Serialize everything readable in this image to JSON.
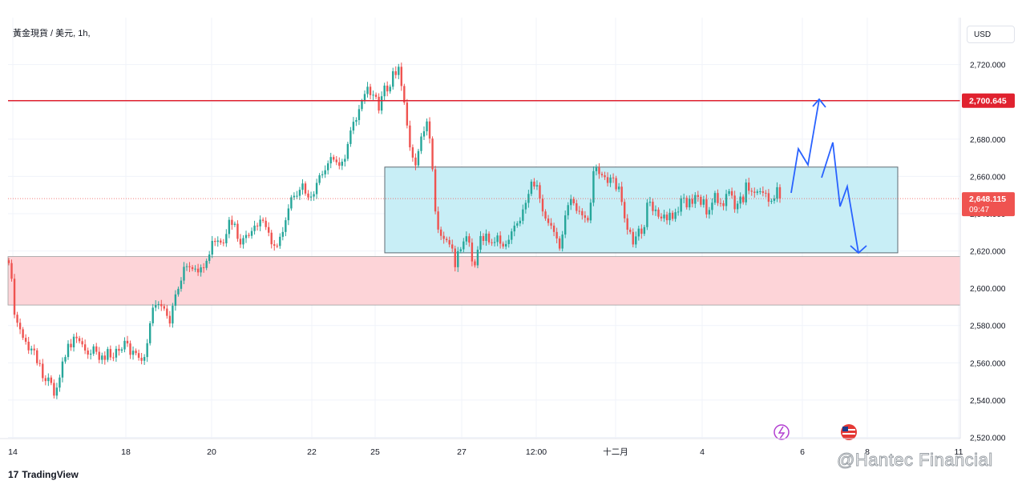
{
  "header": {
    "symbol_title": "黃金現貨 / 美元, 1h,"
  },
  "toolbar": {
    "currency_label": "USD"
  },
  "branding": {
    "tradingview_label": "TradingView",
    "watermark": "@Hantec Financial"
  },
  "colors": {
    "up": "#26a69a",
    "down": "#ef5350",
    "resistance": "#e0222f",
    "box_fill": "#c8eef6",
    "zone_fill": "#fdd4d8",
    "projection": "#2962ff"
  },
  "chart_data": {
    "type": "candlestick",
    "title": "黃金現貨 / 美元, 1h,",
    "xlabel": "",
    "ylabel": "",
    "ylim": [
      2512,
      2735
    ],
    "y_ticks": [
      2520,
      2540,
      2560,
      2580,
      2600,
      2620,
      2640,
      2660,
      2680,
      2700,
      2720
    ],
    "y_tick_labels": [
      "2,520.000",
      "2,540.000",
      "2,560.000",
      "2,580.000",
      "2,600.000",
      "2,620.000",
      "2,640.000",
      "2,660.000",
      "2,680.000",
      "2,700.000",
      "2,720.000"
    ],
    "x_ticks": [
      "14",
      "18",
      "20",
      "22",
      "25",
      "27",
      "12:00",
      "十二月",
      "4",
      "6",
      "8",
      "11"
    ],
    "grid": true,
    "series": [
      {
        "values": [
          2613.5,
          2605.1,
          2585.8,
          2581.5,
          2578.0,
          2573.4,
          2571.3,
          2566.7,
          2567.6,
          2566.7,
          2559.8,
          2559.5,
          2551.8,
          2550.2,
          2552.1,
          2549.2,
          2542.4,
          2546.7,
          2552.1,
          2560.7,
          2563.1,
          2570.2,
          2568.3,
          2574.0,
          2573.2,
          2571.6,
          2569.9,
          2566.6,
          2564.4,
          2564.9,
          2568.8,
          2565.9,
          2561.6,
          2563.9,
          2561.6,
          2567.4,
          2562.9,
          2562.8,
          2567.5,
          2566.5,
          2567.2,
          2571.8,
          2570.4,
          2564.3,
          2566.5,
          2565.2,
          2562.7,
          2561.1,
          2563.1,
          2570.5,
          2581.2,
          2589.6,
          2591.0,
          2591.5,
          2590.4,
          2589.1,
          2585.2,
          2581.1,
          2590.6,
          2596.7,
          2599.7,
          2604.1,
          2611.5,
          2611.8,
          2611.3,
          2610.3,
          2610.5,
          2608.5,
          2611.2,
          2610.9,
          2614.7,
          2618.1,
          2625.4,
          2624.9,
          2625.6,
          2624.5,
          2624.1,
          2629.1,
          2636.7,
          2634.0,
          2634.6,
          2626.5,
          2623.5,
          2626.9,
          2628.6,
          2628.1,
          2630.7,
          2633.6,
          2633.2,
          2636.8,
          2636.2,
          2632.8,
          2629.8,
          2623.6,
          2622.8,
          2622.7,
          2627.6,
          2630.2,
          2636.5,
          2642.8,
          2648.8,
          2649.6,
          2649.6,
          2652.8,
          2656.2,
          2650.8,
          2648.7,
          2649.2,
          2650.5,
          2656.5,
          2660.6,
          2661.1,
          2663.3,
          2667.0,
          2670.4,
          2669.0,
          2667.6,
          2665.7,
          2667.9,
          2669.4,
          2677.4,
          2684.6,
          2689.3,
          2690.2,
          2696.1,
          2700.4,
          2704.2,
          2708.1,
          2703.6,
          2703.8,
          2702.7,
          2695.3,
          2703.0,
          2708.7,
          2705.6,
          2708.1,
          2716.4,
          2714.4,
          2718.8,
          2708.5,
          2699.6,
          2687.3,
          2675.6,
          2670.1,
          2665.9,
          2673.6,
          2681.4,
          2684.2,
          2689.5,
          2680.3,
          2663.8,
          2641.2,
          2631.5,
          2628.1,
          2626.5,
          2625.8,
          2623.5,
          2621.3,
          2611.3,
          2619.9,
          2620.9,
          2625.1,
          2627.9,
          2624.5,
          2614.4,
          2612.3,
          2620.7,
          2628.0,
          2625.4,
          2629.3,
          2624.6,
          2624.3,
          2624.8,
          2628.3,
          2623.9,
          2622.4,
          2623.7,
          2626.0,
          2630.5,
          2633.6,
          2634.8,
          2636.2,
          2642.3,
          2645.8,
          2650.6,
          2657.2,
          2654.6,
          2655.3,
          2648.0,
          2641.2,
          2637.4,
          2635.0,
          2633.6,
          2630.2,
          2626.7,
          2621.3,
          2628.8,
          2639.1,
          2644.6,
          2647.9,
          2645.6,
          2641.5,
          2641.4,
          2639.1,
          2637.8,
          2636.4,
          2645.9,
          2662.8,
          2664.8,
          2661.3,
          2660.6,
          2659.6,
          2656.5,
          2659.4,
          2659.1,
          2653.1,
          2654.5,
          2646.3,
          2637.5,
          2631.4,
          2630.2,
          2623.5,
          2627.8,
          2632.0,
          2629.2,
          2632.8,
          2645.9,
          2646.4,
          2641.4,
          2642.2,
          2638.4,
          2637.5,
          2639.5,
          2636.5,
          2640.5,
          2637.2,
          2640.8,
          2641.1,
          2648.2,
          2648.5,
          2643.4,
          2647.9,
          2645.3,
          2650.0,
          2649.0,
          2644.8,
          2647.7,
          2639.6,
          2642.0,
          2645.9,
          2651.1,
          2645.7,
          2645.6,
          2644.1,
          2650.6,
          2652.1,
          2649.7,
          2642.4,
          2645.4,
          2649.2,
          2646.1,
          2656.7,
          2652.3,
          2651.8,
          2651.2,
          2651.9,
          2652.0,
          2651.2,
          2651.0,
          2646.4,
          2646.9,
          2648.1,
          2654.2,
          2648.1
        ]
      }
    ],
    "annotations": {
      "resistance_line": 2700.645,
      "resistance_label": "2,700.645",
      "current_price": 2648.115,
      "current_price_label": "2,648.115",
      "countdown": "09:47",
      "range_box": {
        "low": 2619,
        "high": 2665
      },
      "support_zone": {
        "low": 2591,
        "high": 2617
      }
    }
  }
}
